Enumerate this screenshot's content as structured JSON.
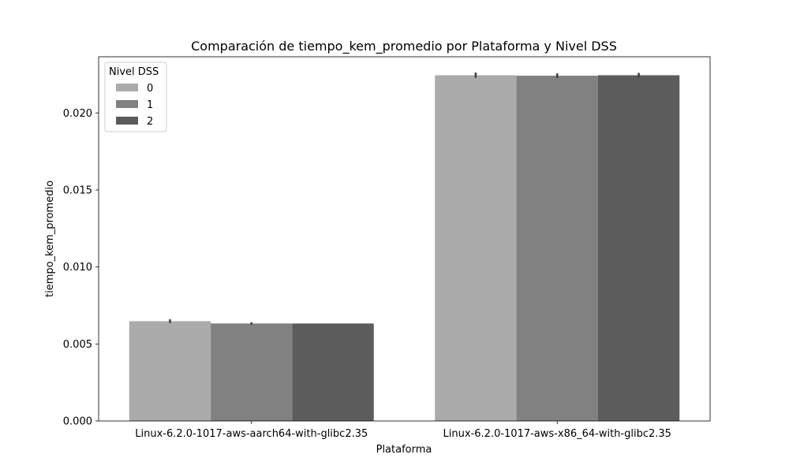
{
  "chart_data": {
    "type": "bar",
    "title": "Comparación de tiempo_kem_promedio por Plataforma y Nivel DSS",
    "xlabel": "Plataforma",
    "ylabel": "tiempo_kem_promedio",
    "categories": [
      "Linux-6.2.0-1017-aws-aarch64-with-glibc2.35",
      "Linux-6.2.0-1017-aws-x86_64-with-glibc2.35"
    ],
    "series": [
      {
        "name": "0",
        "values": [
          0.00648,
          0.02245
        ],
        "error": [
          0.00012,
          0.00017
        ],
        "color": "#ababab"
      },
      {
        "name": "1",
        "values": [
          0.00633,
          0.02242
        ],
        "error": [
          8e-05,
          0.00015
        ],
        "color": "#818181"
      },
      {
        "name": "2",
        "values": [
          0.00633,
          0.02245
        ],
        "error": [
          0.0,
          0.00015
        ],
        "color": "#5c5c5c"
      }
    ],
    "ylim": [
      0,
      0.02365
    ],
    "yticks": [
      "0.000",
      "0.005",
      "0.010",
      "0.015",
      "0.020"
    ],
    "ytick_values": [
      0,
      0.005,
      0.01,
      0.015,
      0.02
    ],
    "legend": {
      "title": "Nivel DSS",
      "position": "top-left"
    },
    "grid": false,
    "errorbar_color": "#424242"
  }
}
